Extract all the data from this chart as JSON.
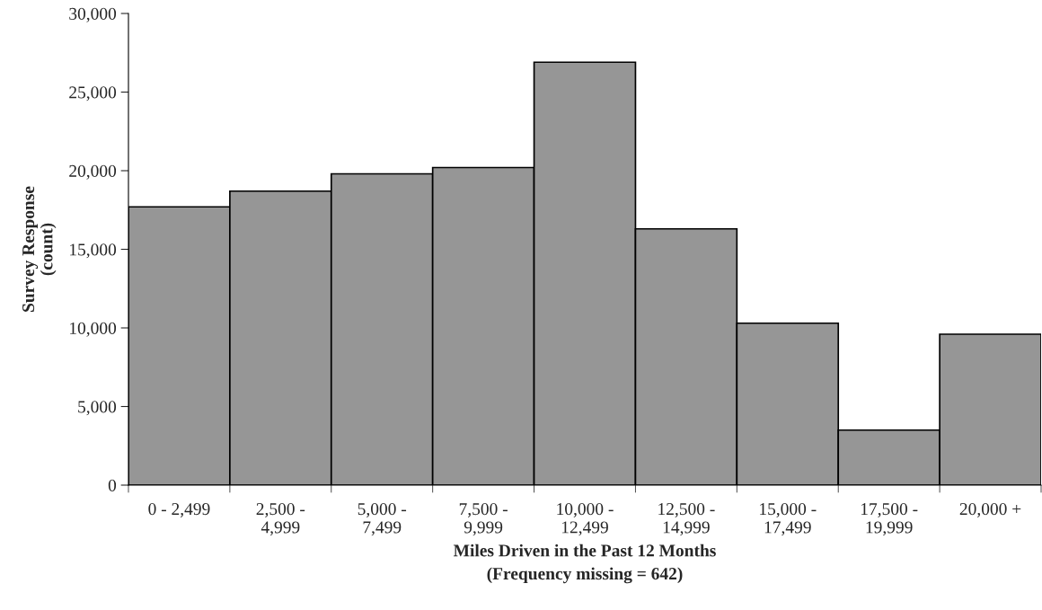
{
  "chart_data": {
    "type": "bar",
    "xlabel": "Miles Driven in the Past 12 Months\n(Frequency missing = 642)",
    "ylabel": "Survey Response\n(count)",
    "categories": [
      "0 - 2,499",
      "2,500 -\n4,999",
      "5,000 -\n7,499",
      "7,500 -\n9,999",
      "10,000 -\n12,499",
      "12,500 -\n14,999",
      "15,000 -\n17,499",
      "17,500 -\n19,999",
      "20,000 +"
    ],
    "values": [
      17700,
      18700,
      19800,
      20200,
      26900,
      16300,
      10300,
      3500,
      9600
    ],
    "color": "#969696",
    "ylim": [
      0,
      30000
    ],
    "yticks": [
      {
        "value": 0,
        "label": "0"
      },
      {
        "value": 5000,
        "label": "5,000"
      },
      {
        "value": 10000,
        "label": "10,000"
      },
      {
        "value": 15000,
        "label": "15,000"
      },
      {
        "value": 20000,
        "label": "20,000"
      },
      {
        "value": 25000,
        "label": "25,000"
      },
      {
        "value": 30000,
        "label": "30,000"
      }
    ],
    "grid": false
  }
}
